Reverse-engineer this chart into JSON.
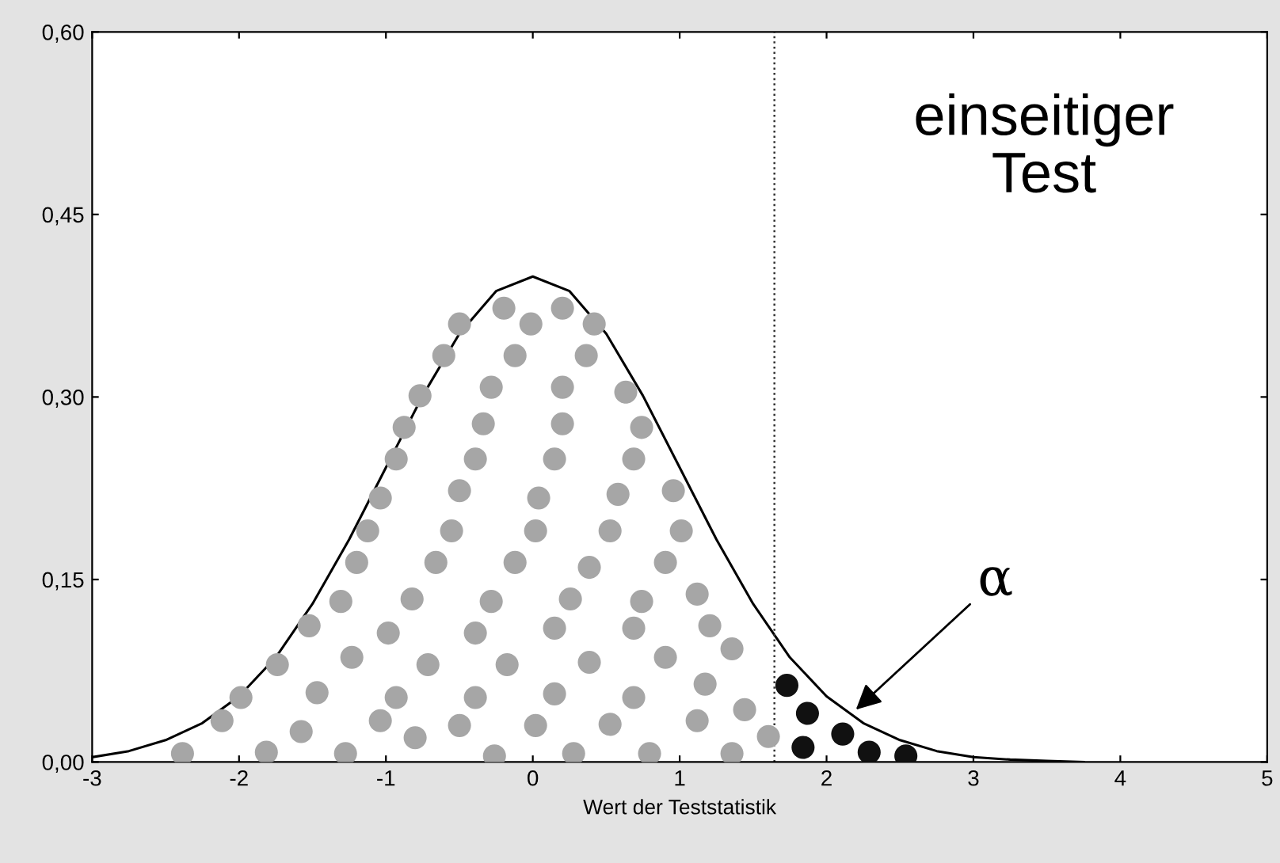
{
  "chart_data": {
    "type": "line",
    "xlabel": "Wert der Teststatistik",
    "xlim": [
      -3,
      5
    ],
    "xticks": [
      -3,
      -2,
      -1,
      0,
      1,
      2,
      3,
      4,
      5
    ],
    "ylim": [
      0,
      0.6
    ],
    "yticks": [
      {
        "value": 0,
        "label": "0,00"
      },
      {
        "value": 0.15,
        "label": "0,15"
      },
      {
        "value": 0.3,
        "label": "0,30"
      },
      {
        "value": 0.45,
        "label": "0,45"
      },
      {
        "value": 0.6,
        "label": "0,60"
      }
    ],
    "grid": false,
    "legend": false,
    "series": [
      {
        "color": "#000000",
        "marker": "none",
        "x": [
          -3,
          -2.75,
          -2.5,
          -2.25,
          -2,
          -1.75,
          -1.5,
          -1.25,
          -1,
          -0.75,
          -0.5,
          -0.25,
          0,
          0.25,
          0.5,
          0.75,
          1,
          1.25,
          1.5,
          1.75,
          2,
          2.25,
          2.5,
          2.75,
          3,
          3.25,
          3.5,
          3.75
        ],
        "values": [
          0.004,
          0.009,
          0.018,
          0.032,
          0.054,
          0.086,
          0.13,
          0.183,
          0.242,
          0.301,
          0.352,
          0.387,
          0.399,
          0.387,
          0.352,
          0.301,
          0.242,
          0.183,
          0.13,
          0.086,
          0.054,
          0.032,
          0.018,
          0.009,
          0.004,
          0.002,
          0.001,
          0.0
        ]
      },
      {
        "type": "scatter",
        "color": "#a6a6a6",
        "marker": "circle",
        "x": [
          -2.385,
          -1.814,
          -1.275,
          -0.801,
          -0.261,
          0.278,
          0.795,
          1.356,
          1.604,
          -2.116,
          -1.577,
          -1.038,
          -0.499,
          0.019,
          0.526,
          1.119,
          1.442,
          -1.987,
          -1.469,
          -0.93,
          -0.391,
          0.148,
          0.687,
          1.173,
          -1.739,
          -1.232,
          -0.714,
          -0.175,
          0.385,
          0.903,
          1.356,
          -1.523,
          -0.984,
          -0.391,
          0.148,
          0.687,
          1.205,
          -1.307,
          -0.822,
          -0.283,
          0.256,
          0.741,
          1.119,
          -1.199,
          -0.66,
          -0.121,
          0.385,
          0.903,
          -1.124,
          -0.553,
          0.019,
          0.526,
          1.011,
          -1.038,
          -0.499,
          0.04,
          0.58,
          0.957,
          -0.93,
          -0.391,
          0.148,
          0.687,
          -0.876,
          -0.337,
          0.202,
          0.741,
          -0.768,
          -0.283,
          0.202,
          0.633,
          -0.606,
          -0.121,
          0.364,
          -0.499,
          -0.013,
          0.418,
          -0.197,
          0.202
        ],
        "values": [
          0.007,
          0.008,
          0.007,
          0.02,
          0.005,
          0.007,
          0.007,
          0.007,
          0.021,
          0.034,
          0.025,
          0.034,
          0.03,
          0.03,
          0.031,
          0.034,
          0.043,
          0.053,
          0.057,
          0.053,
          0.053,
          0.056,
          0.053,
          0.064,
          0.08,
          0.086,
          0.08,
          0.08,
          0.082,
          0.086,
          0.093,
          0.112,
          0.106,
          0.106,
          0.11,
          0.11,
          0.112,
          0.132,
          0.134,
          0.132,
          0.134,
          0.132,
          0.138,
          0.164,
          0.164,
          0.164,
          0.16,
          0.164,
          0.19,
          0.19,
          0.19,
          0.19,
          0.19,
          0.217,
          0.223,
          0.217,
          0.22,
          0.223,
          0.249,
          0.249,
          0.249,
          0.249,
          0.275,
          0.278,
          0.278,
          0.275,
          0.301,
          0.308,
          0.308,
          0.304,
          0.334,
          0.334,
          0.334,
          0.36,
          0.36,
          0.36,
          0.373,
          0.373
        ]
      },
      {
        "type": "scatter",
        "color": "#111111",
        "marker": "circle",
        "x": [
          1.73,
          1.87,
          1.84,
          2.11,
          2.29,
          2.54
        ],
        "values": [
          0.063,
          0.04,
          0.012,
          0.023,
          0.008,
          0.005
        ]
      }
    ],
    "ref_lines": [
      {
        "axis": "x",
        "value": 1.645,
        "color": "#333333",
        "line_style": "dotted"
      }
    ],
    "annotations": [
      "einseitiger\nTest",
      {
        "text": "α",
        "x": 2.2,
        "y": 0.043
      }
    ]
  }
}
